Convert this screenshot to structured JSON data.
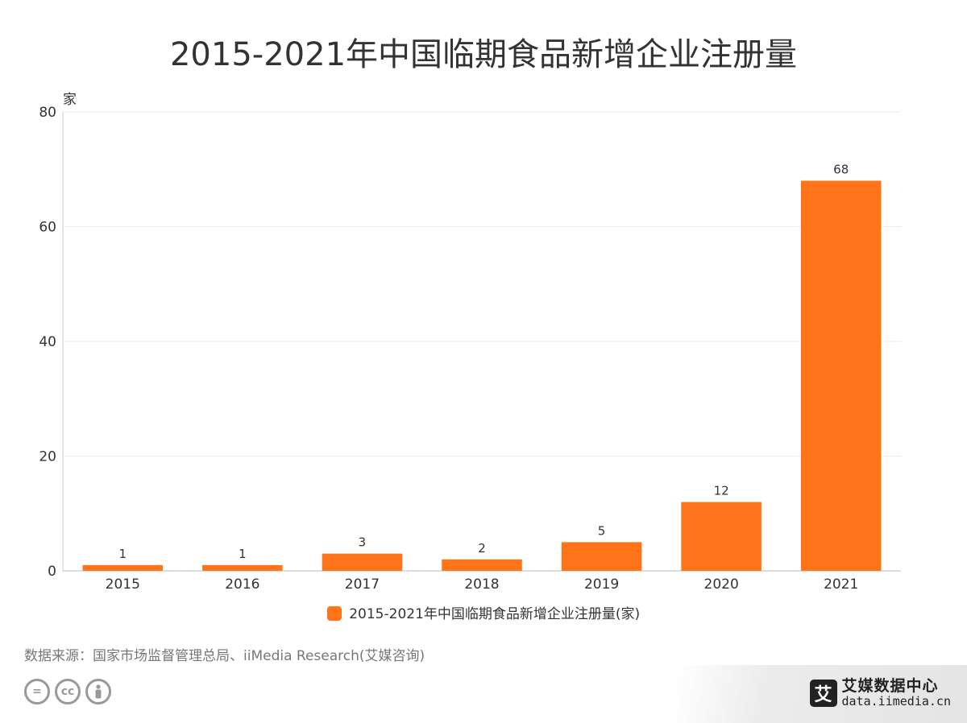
{
  "title": "2015-2021年中国临期食品新增企业注册量",
  "chart_data": {
    "type": "bar",
    "title": "2015-2021年中国临期食品新增企业注册量",
    "categories": [
      "2015",
      "2016",
      "2017",
      "2018",
      "2019",
      "2020",
      "2021"
    ],
    "series": [
      {
        "name": "2015-2021年中国临期食品新增企业注册量(家)",
        "values": [
          1,
          1,
          3,
          2,
          5,
          12,
          68
        ],
        "color": "#ff7419"
      }
    ],
    "ylabel": "家",
    "ylim": [
      0,
      80
    ],
    "yticks": [
      0,
      20,
      40,
      60,
      80
    ],
    "grid": true,
    "legend": "bottom",
    "data_labels": true
  },
  "legend": {
    "label": "2015-2021年中国临期食品新增企业注册量(家)",
    "color": "#ff7419"
  },
  "source": "数据来源：国家市场监督管理总局、iiMedia Research(艾媒咨询)",
  "cc_icons": [
    "equals-icon",
    "cc-icon",
    "person-icon"
  ],
  "brand": {
    "logo_char": "艾",
    "name": "艾媒数据中心",
    "url": "data.iimedia.cn"
  }
}
